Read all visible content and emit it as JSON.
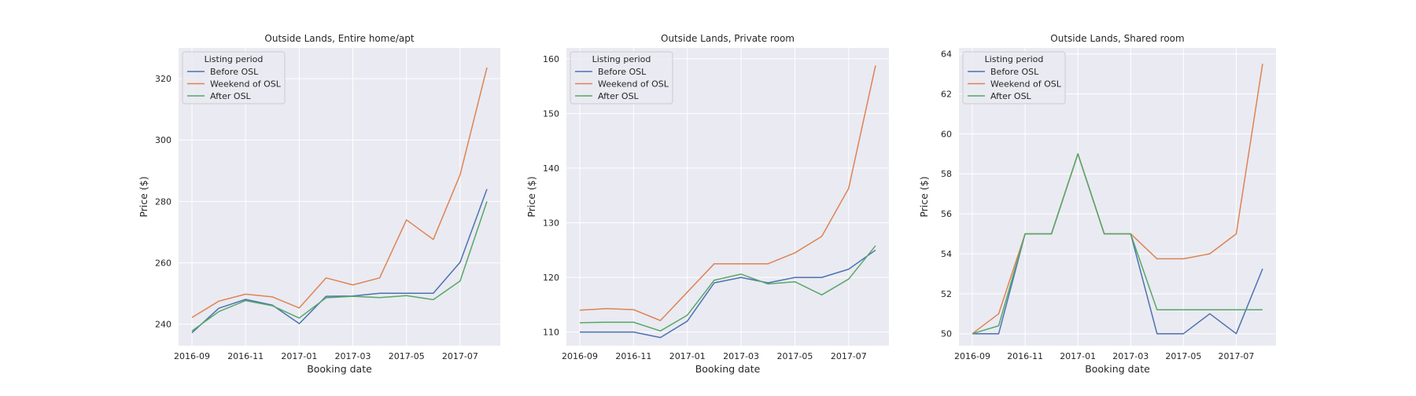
{
  "figure": {
    "background": "#ffffff",
    "axes_facecolor": "#eaeaf2",
    "grid_color": "#ffffff",
    "series_colors": {
      "Before OSL": "#4c72b0",
      "Weekend of OSL": "#dd8452",
      "After OSL": "#55a868"
    }
  },
  "chart_data": [
    {
      "type": "line",
      "title": "Outside Lands, Entire home/apt",
      "xlabel": "Booking date",
      "ylabel": "Price ($)",
      "x": [
        "2016-09",
        "2016-10",
        "2016-11",
        "2016-12",
        "2017-01",
        "2017-02",
        "2017-03",
        "2017-04",
        "2017-05",
        "2017-06",
        "2017-07",
        "2017-08"
      ],
      "xticks": [
        "2016-09",
        "2016-11",
        "2017-01",
        "2017-03",
        "2017-05",
        "2017-07"
      ],
      "ylim": [
        233,
        330
      ],
      "yticks": [
        240,
        260,
        280,
        300,
        320
      ],
      "grid": true,
      "legend": {
        "title": "Listing period",
        "position": "top-left"
      },
      "series": [
        {
          "name": "Before OSL",
          "values": [
            237.2,
            245.2,
            248.1,
            246.2,
            240.2,
            249.1,
            249.2,
            250.1,
            250.1,
            250.1,
            260.2,
            284.0
          ]
        },
        {
          "name": "Weekend of OSL",
          "values": [
            242.2,
            247.5,
            249.8,
            248.9,
            245.3,
            255.1,
            252.8,
            255.1,
            274.0,
            267.6,
            288.7,
            323.6
          ]
        },
        {
          "name": "After OSL",
          "values": [
            237.8,
            244.1,
            247.7,
            246.0,
            242.0,
            248.6,
            249.1,
            248.7,
            249.3,
            248.0,
            254.1,
            280.0
          ]
        }
      ]
    },
    {
      "type": "line",
      "title": "Outside Lands, Private room",
      "xlabel": "Booking date",
      "ylabel": "Price ($)",
      "x": [
        "2016-09",
        "2016-10",
        "2016-11",
        "2016-12",
        "2017-01",
        "2017-02",
        "2017-03",
        "2017-04",
        "2017-05",
        "2017-06",
        "2017-07",
        "2017-08"
      ],
      "xticks": [
        "2016-09",
        "2016-11",
        "2017-01",
        "2017-03",
        "2017-05",
        "2017-07"
      ],
      "ylim": [
        107.5,
        162
      ],
      "yticks": [
        110,
        120,
        130,
        140,
        150,
        160
      ],
      "grid": true,
      "legend": {
        "title": "Listing period",
        "position": "top-left"
      },
      "series": [
        {
          "name": "Before OSL",
          "values": [
            110.0,
            110.0,
            110.0,
            109.0,
            112.0,
            119.0,
            120.0,
            119.0,
            120.0,
            120.0,
            121.5,
            125.0
          ]
        },
        {
          "name": "Weekend of OSL",
          "values": [
            114.0,
            114.3,
            114.1,
            112.1,
            117.3,
            122.5,
            122.5,
            122.5,
            124.5,
            127.5,
            136.3,
            158.8
          ]
        },
        {
          "name": "After OSL",
          "values": [
            111.7,
            111.8,
            111.8,
            110.2,
            113.1,
            119.5,
            120.6,
            118.8,
            119.2,
            116.8,
            119.7,
            125.8
          ]
        }
      ]
    },
    {
      "type": "line",
      "title": "Outside Lands, Shared room",
      "xlabel": "Booking date",
      "ylabel": "Price ($)",
      "x": [
        "2016-09",
        "2016-10",
        "2016-11",
        "2016-12",
        "2017-01",
        "2017-02",
        "2017-03",
        "2017-04",
        "2017-05",
        "2017-06",
        "2017-07",
        "2017-08"
      ],
      "xticks": [
        "2016-09",
        "2016-11",
        "2017-01",
        "2017-03",
        "2017-05",
        "2017-07"
      ],
      "ylim": [
        49.4,
        64.3
      ],
      "yticks": [
        50,
        52,
        54,
        56,
        58,
        60,
        62,
        64
      ],
      "grid": true,
      "legend": {
        "title": "Listing period",
        "position": "top-left"
      },
      "series": [
        {
          "name": "Before OSL",
          "values": [
            50.0,
            50.0,
            55.0,
            55.0,
            59.0,
            55.0,
            55.0,
            50.0,
            50.0,
            51.0,
            50.0,
            53.25
          ]
        },
        {
          "name": "Weekend of OSL",
          "values": [
            50.0,
            51.0,
            55.0,
            55.0,
            59.0,
            55.0,
            55.0,
            53.75,
            53.75,
            54.0,
            55.0,
            63.5
          ]
        },
        {
          "name": "After OSL",
          "values": [
            50.0,
            50.4,
            55.0,
            55.0,
            59.0,
            55.0,
            55.0,
            51.2,
            51.2,
            51.2,
            51.2,
            51.2
          ]
        }
      ]
    }
  ]
}
